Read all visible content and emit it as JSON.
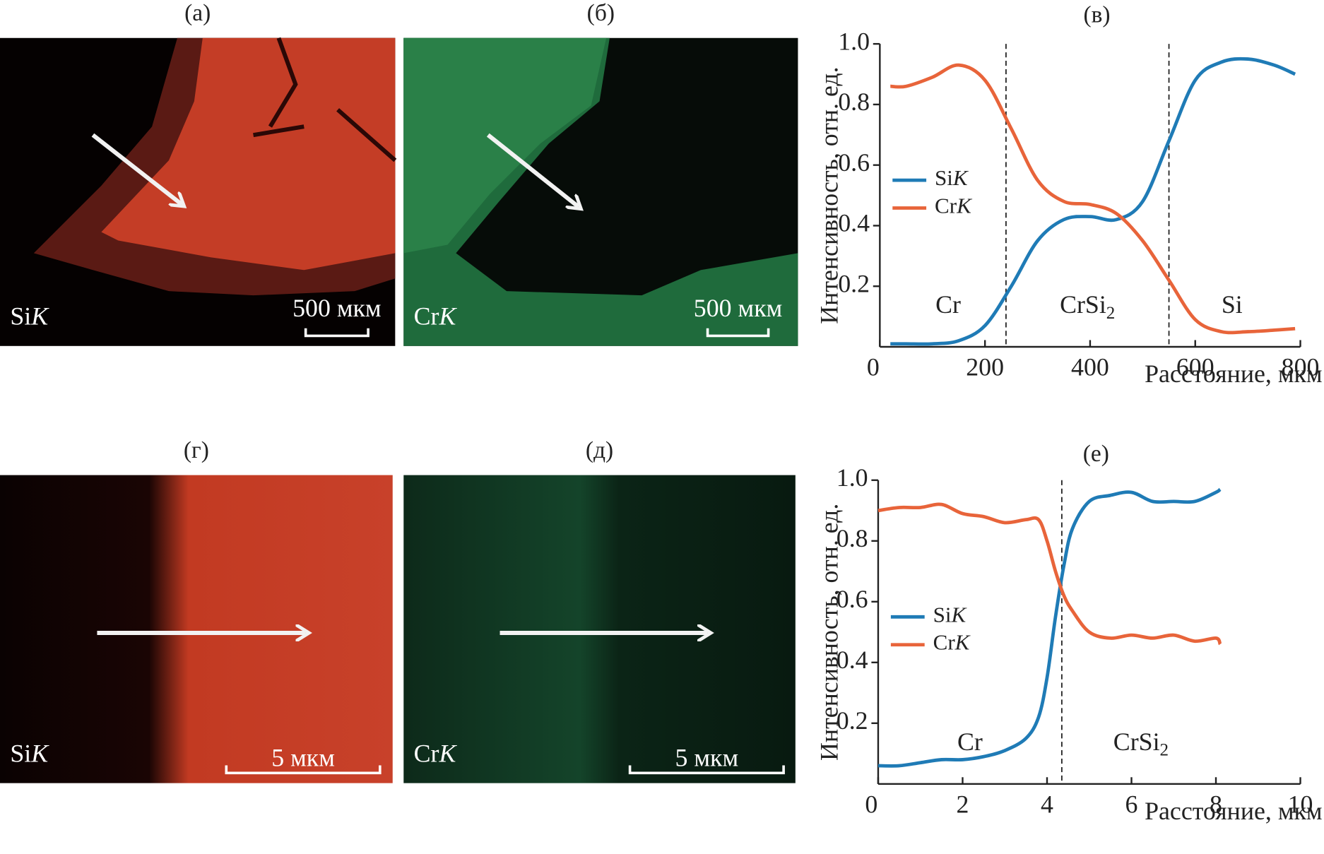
{
  "panels": [
    {
      "label": "(а)",
      "element": "Si",
      "line": "K",
      "scale": "500 мкм"
    },
    {
      "label": "(б)",
      "element": "Cr",
      "line": "K",
      "scale": "500 мкм"
    },
    {
      "label": "(г)",
      "element": "Si",
      "line": "K",
      "scale": "5 мкм"
    },
    {
      "label": "(д)",
      "element": "Cr",
      "line": "K",
      "scale": "5 мкм"
    }
  ],
  "chart_data": [
    {
      "type": "line",
      "title": "(в)",
      "xlabel": "Расстояние, мкм",
      "ylabel": "Интенсивность, отн. ед.",
      "xlim": [
        0,
        800
      ],
      "xticks": [
        0,
        200,
        400,
        600,
        800
      ],
      "ylim": [
        0,
        1
      ],
      "yticks": [
        {
          "value": 0.2,
          "label": "0.2"
        },
        {
          "value": 0.4,
          "label": "0.4"
        },
        {
          "value": 0.6,
          "label": "0.6"
        },
        {
          "value": 0.8,
          "label": "0.8"
        },
        {
          "value": 1,
          "label": "1.0"
        }
      ],
      "legend": "center left",
      "boundaries": [
        240,
        550
      ],
      "regions": [
        {
          "text": "Cr"
        },
        {
          "text": "CrSi",
          "sub": "2"
        },
        {
          "text": "Si"
        }
      ],
      "x": [
        20,
        50,
        100,
        150,
        200,
        250,
        300,
        350,
        400,
        450,
        500,
        550,
        600,
        650,
        700,
        750,
        790
      ],
      "series": [
        {
          "name": "Si",
          "line": "K",
          "color": "#1f7bb6",
          "values": [
            0.01,
            0.01,
            0.01,
            0.02,
            0.07,
            0.2,
            0.35,
            0.42,
            0.43,
            0.42,
            0.48,
            0.68,
            0.88,
            0.94,
            0.95,
            0.93,
            0.9
          ]
        },
        {
          "name": "Cr",
          "line": "K",
          "color": "#e8643a",
          "values": [
            0.86,
            0.86,
            0.89,
            0.93,
            0.88,
            0.72,
            0.55,
            0.48,
            0.47,
            0.44,
            0.35,
            0.22,
            0.09,
            0.05,
            0.05,
            0.055,
            0.06
          ]
        }
      ]
    },
    {
      "type": "line",
      "title": "(е)",
      "xlabel": "Расстояние, мкм",
      "ylabel": "Интенсивность, отн. ед.",
      "xlim": [
        0,
        10
      ],
      "xticks": [
        0,
        2,
        4,
        6,
        8,
        10
      ],
      "ylim": [
        0,
        1
      ],
      "yticks": [
        {
          "value": 0.2,
          "label": "0.2"
        },
        {
          "value": 0.4,
          "label": "0.4"
        },
        {
          "value": 0.6,
          "label": "0.6"
        },
        {
          "value": 0.8,
          "label": "0.8"
        },
        {
          "value": 1,
          "label": "1.0"
        }
      ],
      "legend": "center left",
      "boundaries": [
        4.35
      ],
      "regions": [
        {
          "text": "Cr"
        },
        {
          "text": "CrSi",
          "sub": "2"
        }
      ],
      "x": [
        0,
        0.5,
        1,
        1.5,
        2,
        2.5,
        3,
        3.5,
        3.8,
        4,
        4.2,
        4.4,
        4.6,
        5,
        5.5,
        6,
        6.5,
        7,
        7.5,
        8,
        8.1
      ],
      "series": [
        {
          "name": "Si",
          "line": "K",
          "color": "#1f7bb6",
          "values": [
            0.06,
            0.06,
            0.07,
            0.08,
            0.08,
            0.09,
            0.11,
            0.15,
            0.22,
            0.35,
            0.55,
            0.72,
            0.84,
            0.93,
            0.95,
            0.96,
            0.93,
            0.93,
            0.93,
            0.96,
            0.97
          ]
        },
        {
          "name": "Cr",
          "line": "K",
          "color": "#e8643a",
          "values": [
            0.9,
            0.91,
            0.91,
            0.92,
            0.89,
            0.88,
            0.86,
            0.87,
            0.87,
            0.8,
            0.7,
            0.62,
            0.57,
            0.5,
            0.48,
            0.49,
            0.48,
            0.49,
            0.47,
            0.48,
            0.46
          ]
        }
      ]
    }
  ]
}
